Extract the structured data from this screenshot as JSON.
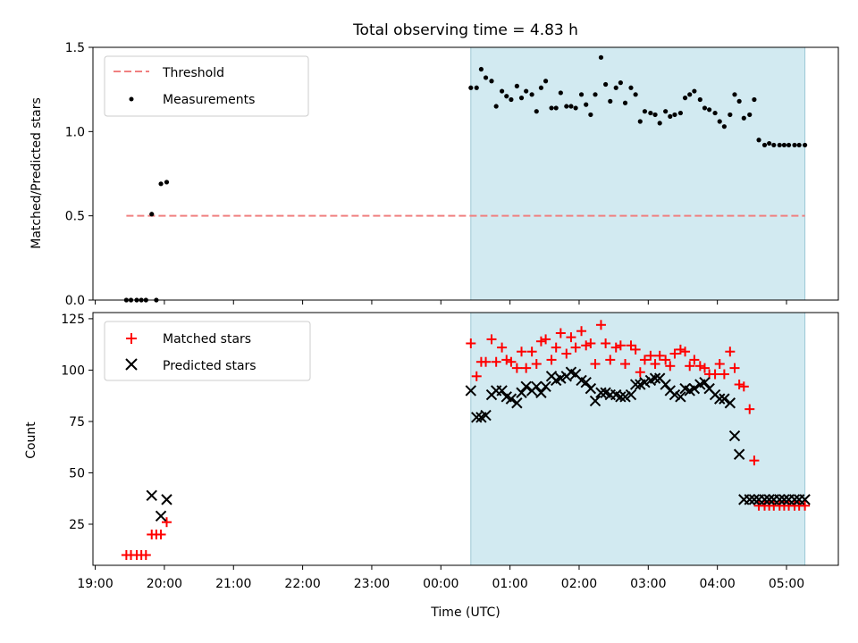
{
  "title": "Total observing time = 4.83 h",
  "xlabel": "Time (UTC)",
  "x_ticks": [
    "19:00",
    "20:00",
    "21:00",
    "22:00",
    "23:00",
    "00:00",
    "01:00",
    "02:00",
    "03:00",
    "04:00",
    "05:00"
  ],
  "colors": {
    "threshold": "#f08080",
    "measurements": "#000000",
    "matched": "#ff0000",
    "predicted": "#000000",
    "observing_window": "#add8e6"
  },
  "chart_data": [
    {
      "type": "scatter",
      "ylabel": "Matched/Predicted stars",
      "xlim": [
        "18:58",
        "05:45"
      ],
      "ylim": [
        0,
        1.5
      ],
      "yticks": [
        "0.0",
        "0.5",
        "1.0",
        "1.5"
      ],
      "legend_position": "upper-left",
      "observing_window": [
        "00:26",
        "05:16"
      ],
      "threshold": {
        "name": "Threshold",
        "y": 0.5,
        "x": [
          "19:27",
          "05:16"
        ]
      },
      "series": [
        {
          "name": "Measurements",
          "x": [
            "19:27",
            "19:31",
            "19:36",
            "19:40",
            "19:44",
            "19:49",
            "19:53",
            "19:57",
            "20:02",
            "00:26",
            "00:31",
            "00:35",
            "00:39",
            "00:44",
            "00:48",
            "00:53",
            "00:57",
            "01:01",
            "01:06",
            "01:10",
            "01:14",
            "01:19",
            "01:23",
            "01:27",
            "01:31",
            "01:36",
            "01:40",
            "01:44",
            "01:49",
            "01:53",
            "01:57",
            "02:02",
            "02:06",
            "02:10",
            "02:14",
            "02:19",
            "02:23",
            "02:27",
            "02:32",
            "02:36",
            "02:40",
            "02:45",
            "02:49",
            "02:53",
            "02:57",
            "03:02",
            "03:06",
            "03:10",
            "03:15",
            "03:19",
            "03:23",
            "03:28",
            "03:32",
            "03:36",
            "03:40",
            "03:45",
            "03:49",
            "03:53",
            "03:58",
            "04:02",
            "04:06",
            "04:11",
            "04:15",
            "04:19",
            "04:23",
            "04:28",
            "04:32",
            "04:36",
            "04:41",
            "04:45",
            "04:49",
            "04:54",
            "04:58",
            "05:02",
            "05:07",
            "05:11",
            "05:16"
          ],
          "y": [
            0,
            0,
            0,
            0,
            0,
            0.51,
            0,
            0.69,
            0.7,
            1.26,
            1.26,
            1.37,
            1.32,
            1.3,
            1.15,
            1.24,
            1.21,
            1.19,
            1.27,
            1.2,
            1.24,
            1.22,
            1.12,
            1.26,
            1.3,
            1.14,
            1.14,
            1.23,
            1.15,
            1.15,
            1.14,
            1.22,
            1.16,
            1.1,
            1.22,
            1.44,
            1.28,
            1.18,
            1.26,
            1.29,
            1.17,
            1.26,
            1.22,
            1.06,
            1.12,
            1.11,
            1.1,
            1.05,
            1.12,
            1.09,
            1.1,
            1.11,
            1.2,
            1.22,
            1.24,
            1.19,
            1.14,
            1.13,
            1.11,
            1.06,
            1.03,
            1.1,
            1.22,
            1.18,
            1.08,
            1.1,
            1.19,
            0.95,
            0.92,
            0.93,
            0.92,
            0.92,
            0.92,
            0.92,
            0.92,
            0.92,
            0.92
          ]
        }
      ]
    },
    {
      "type": "scatter",
      "ylabel": "Count",
      "xlim": [
        "18:58",
        "05:45"
      ],
      "ylim": [
        5,
        128
      ],
      "yticks": [
        "25",
        "50",
        "75",
        "100",
        "125"
      ],
      "legend_position": "upper-left",
      "observing_window": [
        "00:26",
        "05:16"
      ],
      "series": [
        {
          "name": "Matched stars",
          "marker": "plus",
          "x": [
            "19:27",
            "19:31",
            "19:36",
            "19:40",
            "19:44",
            "19:49",
            "19:53",
            "19:57",
            "20:02",
            "00:26",
            "00:31",
            "00:35",
            "00:39",
            "00:44",
            "00:48",
            "00:53",
            "00:57",
            "01:01",
            "01:06",
            "01:10",
            "01:14",
            "01:19",
            "01:23",
            "01:27",
            "01:31",
            "01:36",
            "01:40",
            "01:44",
            "01:49",
            "01:53",
            "01:57",
            "02:02",
            "02:06",
            "02:10",
            "02:14",
            "02:19",
            "02:23",
            "02:27",
            "02:32",
            "02:36",
            "02:40",
            "02:45",
            "02:49",
            "02:53",
            "02:57",
            "03:02",
            "03:06",
            "03:10",
            "03:15",
            "03:19",
            "03:23",
            "03:28",
            "03:32",
            "03:36",
            "03:40",
            "03:45",
            "03:49",
            "03:53",
            "03:58",
            "04:02",
            "04:06",
            "04:11",
            "04:15",
            "04:19",
            "04:23",
            "04:28",
            "04:32",
            "04:36",
            "04:41",
            "04:45",
            "04:49",
            "04:54",
            "04:58",
            "05:02",
            "05:07",
            "05:11",
            "05:16"
          ],
          "y": [
            10,
            10,
            10,
            10,
            10,
            20,
            20,
            20,
            26,
            113,
            97,
            104,
            104,
            115,
            104,
            111,
            105,
            104,
            101,
            109,
            101,
            109,
            103,
            114,
            115,
            105,
            111,
            118,
            108,
            116,
            111,
            119,
            112,
            113,
            103,
            122,
            113,
            105,
            111,
            112,
            103,
            112,
            110,
            99,
            105,
            107,
            103,
            107,
            105,
            102,
            108,
            110,
            109,
            102,
            105,
            102,
            101,
            98,
            98,
            103,
            98,
            109,
            101,
            93,
            92,
            81,
            56,
            34,
            34,
            34,
            34,
            34,
            34,
            34,
            34,
            34,
            34
          ]
        },
        {
          "name": "Predicted stars",
          "marker": "x",
          "x": [
            "19:49",
            "19:57",
            "20:02",
            "00:26",
            "00:31",
            "00:35",
            "00:39",
            "00:44",
            "00:48",
            "00:53",
            "00:57",
            "01:01",
            "01:06",
            "01:10",
            "01:14",
            "01:19",
            "01:23",
            "01:27",
            "01:31",
            "01:36",
            "01:40",
            "01:44",
            "01:49",
            "01:53",
            "01:57",
            "02:02",
            "02:06",
            "02:10",
            "02:14",
            "02:19",
            "02:23",
            "02:27",
            "02:32",
            "02:36",
            "02:40",
            "02:45",
            "02:49",
            "02:53",
            "02:57",
            "03:02",
            "03:06",
            "03:10",
            "03:15",
            "03:19",
            "03:23",
            "03:28",
            "03:32",
            "03:36",
            "03:40",
            "03:45",
            "03:49",
            "03:53",
            "03:58",
            "04:02",
            "04:06",
            "04:11",
            "04:15",
            "04:19",
            "04:23",
            "04:28",
            "04:32",
            "04:36",
            "04:41",
            "04:45",
            "04:49",
            "04:54",
            "04:58",
            "05:02",
            "05:07",
            "05:11",
            "05:16"
          ],
          "y": [
            39,
            29,
            37,
            90,
            77,
            77,
            78,
            88,
            90,
            90,
            87,
            86,
            84,
            89,
            92,
            90,
            92,
            89,
            92,
            97,
            95,
            96,
            97,
            99,
            98,
            95,
            94,
            91,
            85,
            89,
            89,
            88,
            88,
            87,
            87,
            88,
            93,
            93,
            94,
            95,
            96,
            96,
            93,
            90,
            88,
            87,
            91,
            90,
            91,
            93,
            94,
            91,
            88,
            86,
            86,
            84,
            68,
            59,
            37,
            37,
            37,
            37,
            37,
            37,
            37,
            37,
            37,
            37,
            37,
            37,
            37
          ]
        }
      ]
    }
  ]
}
